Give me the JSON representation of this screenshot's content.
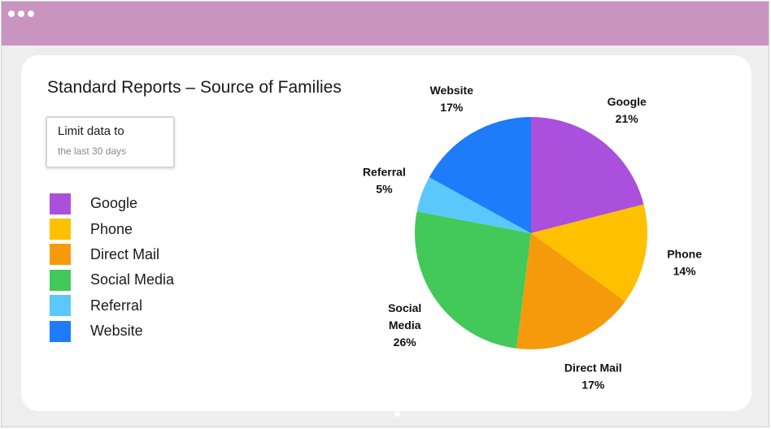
{
  "window": {
    "colors": {
      "titlebar": "#c994c0",
      "background": "#eeeeee",
      "card": "#ffffff"
    }
  },
  "header": {
    "title": "Standard Reports – Source of Families"
  },
  "filter": {
    "label": "Limit data to",
    "value": "the last 30 days"
  },
  "chart_data": {
    "type": "pie",
    "title": "",
    "categories": [
      "Google",
      "Phone",
      "Direct Mail",
      "Social Media",
      "Referral",
      "Website"
    ],
    "values": [
      21,
      14,
      17,
      26,
      5,
      17
    ],
    "value_labels": [
      "21%",
      "14%",
      "17%",
      "26%",
      "5%",
      "17%"
    ],
    "label_lines": [
      [
        "Google",
        "21%"
      ],
      [
        "Phone",
        "14%"
      ],
      [
        "Direct Mail",
        "17%"
      ],
      [
        "Social",
        "Media",
        "26%"
      ],
      [
        "Referral",
        "5%"
      ],
      [
        "Website",
        "17%"
      ]
    ],
    "colors": [
      "#ab4fdd",
      "#ffc000",
      "#f59b0b",
      "#43c85a",
      "#5ac8fa",
      "#1e7bfa"
    ],
    "start": "12 o'clock",
    "direction": "clockwise",
    "legend": "left"
  }
}
